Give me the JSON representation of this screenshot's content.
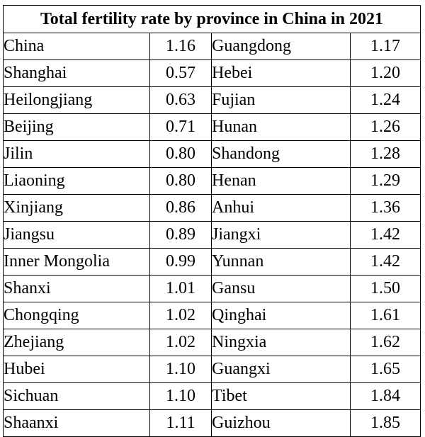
{
  "title": "Total fertility rate by province in China in 2021",
  "left_column": [
    {
      "region": "China",
      "tfr": "1.16"
    },
    {
      "region": "Shanghai",
      "tfr": "0.57"
    },
    {
      "region": "Heilongjiang",
      "tfr": "0.63"
    },
    {
      "region": "Beijing",
      "tfr": "0.71"
    },
    {
      "region": "Jilin",
      "tfr": "0.80"
    },
    {
      "region": "Liaoning",
      "tfr": "0.80"
    },
    {
      "region": "Xinjiang",
      "tfr": "0.86"
    },
    {
      "region": "Jiangsu",
      "tfr": "0.89"
    },
    {
      "region": "Inner Mongolia",
      "tfr": "0.99"
    },
    {
      "region": "Shanxi",
      "tfr": "1.01"
    },
    {
      "region": "Chongqing",
      "tfr": "1.02"
    },
    {
      "region": "Zhejiang",
      "tfr": "1.02"
    },
    {
      "region": "Hubei",
      "tfr": "1.10"
    },
    {
      "region": "Sichuan",
      "tfr": "1.10"
    },
    {
      "region": "Shaanxi",
      "tfr": "1.11"
    }
  ],
  "right_column": [
    {
      "region": "Guangdong",
      "tfr": "1.17"
    },
    {
      "region": "Hebei",
      "tfr": "1.20"
    },
    {
      "region": "Fujian",
      "tfr": "1.24"
    },
    {
      "region": "Hunan",
      "tfr": "1.26"
    },
    {
      "region": "Shandong",
      "tfr": "1.28"
    },
    {
      "region": "Henan",
      "tfr": "1.29"
    },
    {
      "region": "Anhui",
      "tfr": "1.36"
    },
    {
      "region": "Jiangxi",
      "tfr": "1.42"
    },
    {
      "region": "Yunnan",
      "tfr": "1.42"
    },
    {
      "region": "Gansu",
      "tfr": "1.50"
    },
    {
      "region": "Qinghai",
      "tfr": "1.61"
    },
    {
      "region": "Ningxia",
      "tfr": "1.62"
    },
    {
      "region": "Guangxi",
      "tfr": "1.65"
    },
    {
      "region": "Tibet",
      "tfr": "1.84"
    },
    {
      "region": "Guizhou",
      "tfr": "1.85"
    }
  ]
}
